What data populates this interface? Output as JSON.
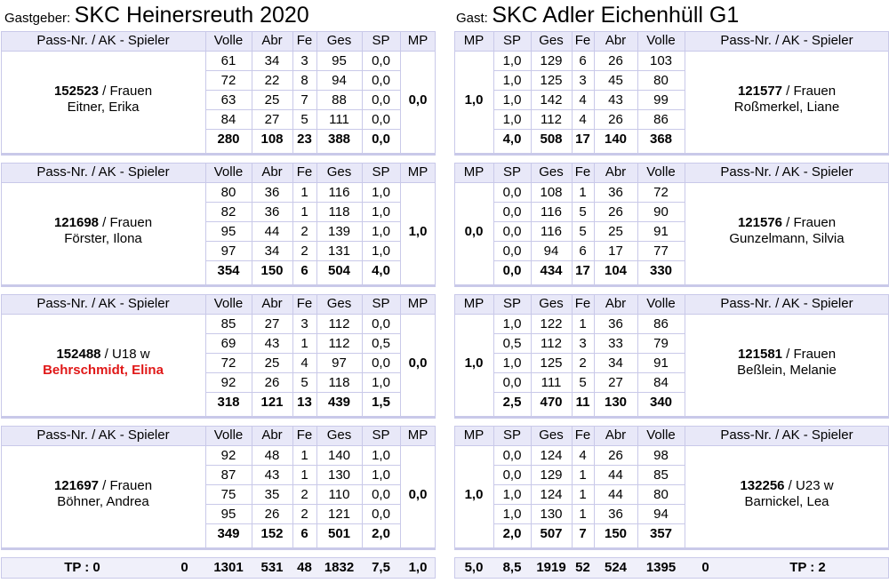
{
  "header": {
    "home_label": "Gastgeber:",
    "home_team": "SKC Heinersreuth 2020",
    "away_label": "Gast:",
    "away_team": "SKC Adler Eichenhüll G1"
  },
  "columns": {
    "player": "Pass-Nr. / AK - Spieler",
    "volle": "Volle",
    "abr": "Abr",
    "fe": "Fe",
    "ges": "Ges",
    "sp": "SP",
    "mp": "MP"
  },
  "home": [
    {
      "pass": "152523",
      "ak": " / Frauen",
      "name": "Eitner, Erika",
      "red": false,
      "mp": "0,0",
      "rows": [
        [
          "61",
          "34",
          "3",
          "95",
          "0,0"
        ],
        [
          "72",
          "22",
          "8",
          "94",
          "0,0"
        ],
        [
          "63",
          "25",
          "7",
          "88",
          "0,0"
        ],
        [
          "84",
          "27",
          "5",
          "111",
          "0,0"
        ]
      ],
      "total": [
        "280",
        "108",
        "23",
        "388",
        "0,0"
      ]
    },
    {
      "pass": "121698",
      "ak": " / Frauen",
      "name": "Förster, Ilona",
      "red": false,
      "mp": "1,0",
      "rows": [
        [
          "80",
          "36",
          "1",
          "116",
          "1,0"
        ],
        [
          "82",
          "36",
          "1",
          "118",
          "1,0"
        ],
        [
          "95",
          "44",
          "2",
          "139",
          "1,0"
        ],
        [
          "97",
          "34",
          "2",
          "131",
          "1,0"
        ]
      ],
      "total": [
        "354",
        "150",
        "6",
        "504",
        "4,0"
      ]
    },
    {
      "pass": "152488",
      "ak": " / U18 w",
      "name": "Behrschmidt, Elina",
      "red": true,
      "mp": "0,0",
      "rows": [
        [
          "85",
          "27",
          "3",
          "112",
          "0,0"
        ],
        [
          "69",
          "43",
          "1",
          "112",
          "0,5"
        ],
        [
          "72",
          "25",
          "4",
          "97",
          "0,0"
        ],
        [
          "92",
          "26",
          "5",
          "118",
          "1,0"
        ]
      ],
      "total": [
        "318",
        "121",
        "13",
        "439",
        "1,5"
      ]
    },
    {
      "pass": "121697",
      "ak": " / Frauen",
      "name": "Böhner, Andrea",
      "red": false,
      "mp": "0,0",
      "rows": [
        [
          "92",
          "48",
          "1",
          "140",
          "1,0"
        ],
        [
          "87",
          "43",
          "1",
          "130",
          "1,0"
        ],
        [
          "75",
          "35",
          "2",
          "110",
          "0,0"
        ],
        [
          "95",
          "26",
          "2",
          "121",
          "0,0"
        ]
      ],
      "total": [
        "349",
        "152",
        "6",
        "501",
        "2,0"
      ]
    }
  ],
  "away": [
    {
      "pass": "121577",
      "ak": " / Frauen",
      "name": "Roßmerkel, Liane",
      "red": false,
      "mp": "1,0",
      "rows": [
        [
          "1,0",
          "129",
          "6",
          "26",
          "103"
        ],
        [
          "1,0",
          "125",
          "3",
          "45",
          "80"
        ],
        [
          "1,0",
          "142",
          "4",
          "43",
          "99"
        ],
        [
          "1,0",
          "112",
          "4",
          "26",
          "86"
        ]
      ],
      "total": [
        "4,0",
        "508",
        "17",
        "140",
        "368"
      ]
    },
    {
      "pass": "121576",
      "ak": " / Frauen",
      "name": "Gunzelmann, Silvia",
      "red": false,
      "mp": "0,0",
      "rows": [
        [
          "0,0",
          "108",
          "1",
          "36",
          "72"
        ],
        [
          "0,0",
          "116",
          "5",
          "26",
          "90"
        ],
        [
          "0,0",
          "116",
          "5",
          "25",
          "91"
        ],
        [
          "0,0",
          "94",
          "6",
          "17",
          "77"
        ]
      ],
      "total": [
        "0,0",
        "434",
        "17",
        "104",
        "330"
      ]
    },
    {
      "pass": "121581",
      "ak": " / Frauen",
      "name": "Beßlein, Melanie",
      "red": false,
      "mp": "1,0",
      "rows": [
        [
          "1,0",
          "122",
          "1",
          "36",
          "86"
        ],
        [
          "0,5",
          "112",
          "3",
          "33",
          "79"
        ],
        [
          "1,0",
          "125",
          "2",
          "34",
          "91"
        ],
        [
          "0,0",
          "111",
          "5",
          "27",
          "84"
        ]
      ],
      "total": [
        "2,5",
        "470",
        "11",
        "130",
        "340"
      ]
    },
    {
      "pass": "132256",
      "ak": " / U23 w",
      "name": "Barnickel, Lea",
      "red": false,
      "mp": "1,0",
      "rows": [
        [
          "0,0",
          "124",
          "4",
          "26",
          "98"
        ],
        [
          "0,0",
          "129",
          "1",
          "44",
          "85"
        ],
        [
          "1,0",
          "124",
          "1",
          "44",
          "80"
        ],
        [
          "1,0",
          "130",
          "1",
          "36",
          "94"
        ]
      ],
      "total": [
        "2,0",
        "507",
        "7",
        "150",
        "357"
      ]
    }
  ],
  "totals": {
    "home_tp": "TP : 0",
    "home_zero": "0",
    "home_values": [
      "1301",
      "531",
      "48",
      "1832",
      "7,5",
      "1,0"
    ],
    "away_values": [
      "5,0",
      "8,5",
      "1919",
      "52",
      "524",
      "1395"
    ],
    "away_zero": "0",
    "away_tp": "TP : 2"
  }
}
